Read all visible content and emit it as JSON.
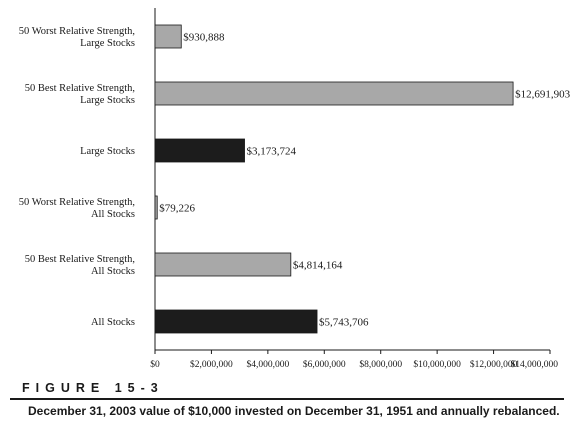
{
  "chart_data": {
    "type": "bar",
    "orientation": "horizontal",
    "categories": [
      [
        "50 Worst Relative Strength,",
        "Large Stocks"
      ],
      [
        "50 Best Relative Strength,",
        "Large Stocks"
      ],
      [
        "Large Stocks"
      ],
      [
        "50 Worst Relative Strength,",
        "All Stocks"
      ],
      [
        "50 Best Relative Strength,",
        "All Stocks"
      ],
      [
        "All Stocks"
      ]
    ],
    "values": [
      930888,
      12691903,
      3173724,
      79226,
      4814164,
      5743706
    ],
    "value_labels": [
      "$930,888",
      "$12,691,903",
      "$3,173,724",
      "$79,226",
      "$4,814,164",
      "$5,743,706"
    ],
    "bar_colors": [
      "#a8a8a8",
      "#a8a8a8",
      "#1c1c1c",
      "#a8a8a8",
      "#a8a8a8",
      "#1c1c1c"
    ],
    "xlim": [
      0,
      14000000
    ],
    "xticks": [
      0,
      2000000,
      4000000,
      6000000,
      8000000,
      10000000,
      12000000,
      14000000
    ],
    "xtick_labels": [
      "$0",
      "$2,000,000",
      "$4,000,000",
      "$6,000,000",
      "$8,000,000",
      "$10,000,000",
      "$12,000,000",
      "$14,000,000"
    ],
    "grid": false,
    "title": "",
    "xlabel": "",
    "ylabel": ""
  },
  "figure": {
    "label": "FIGURE 15-3",
    "caption": "December 31, 2003 value of $10,000 invested on December 31, 1951 and annually rebalanced."
  }
}
